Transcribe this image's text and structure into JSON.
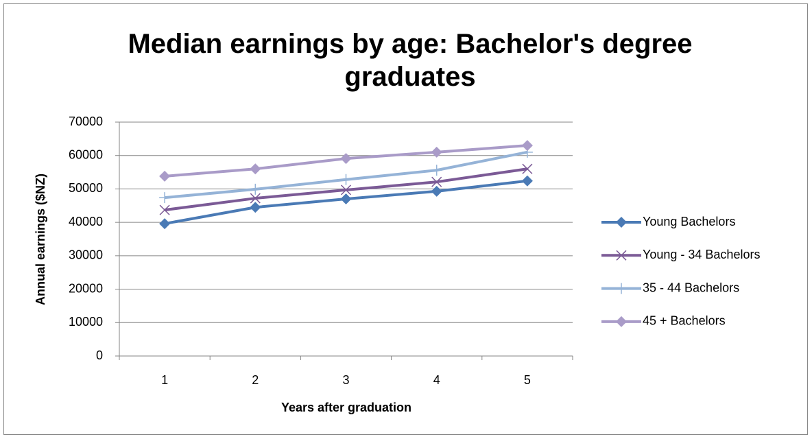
{
  "chart_data": {
    "type": "line",
    "title": "Median earnings by age: Bachelor's degree graduates",
    "x_label": "Years after graduation",
    "y_label": "Annual earnings ($NZ)",
    "categories": [
      "1",
      "2",
      "3",
      "4",
      "5"
    ],
    "series": [
      {
        "name": "Young Bachelors",
        "color": "#4a7ab5",
        "marker": "diamond",
        "values": [
          39600,
          44500,
          47000,
          49300,
          52400
        ]
      },
      {
        "name": "Young - 34 Bachelors",
        "color": "#7b5a96",
        "marker": "x",
        "values": [
          43700,
          47200,
          49700,
          52100,
          56000
        ]
      },
      {
        "name": "35 - 44 Bachelors",
        "color": "#95b3d7",
        "marker": "plus",
        "values": [
          47400,
          49900,
          52800,
          55600,
          61000
        ]
      },
      {
        "name": "45 + Bachelors",
        "color": "#a99bc8",
        "marker": "diamond",
        "values": [
          53800,
          56000,
          59100,
          61000,
          63000
        ]
      }
    ],
    "ylim": [
      0,
      70000
    ],
    "yticks": [
      0,
      10000,
      20000,
      30000,
      40000,
      50000,
      60000,
      70000
    ],
    "grid": true,
    "legend": "right"
  }
}
